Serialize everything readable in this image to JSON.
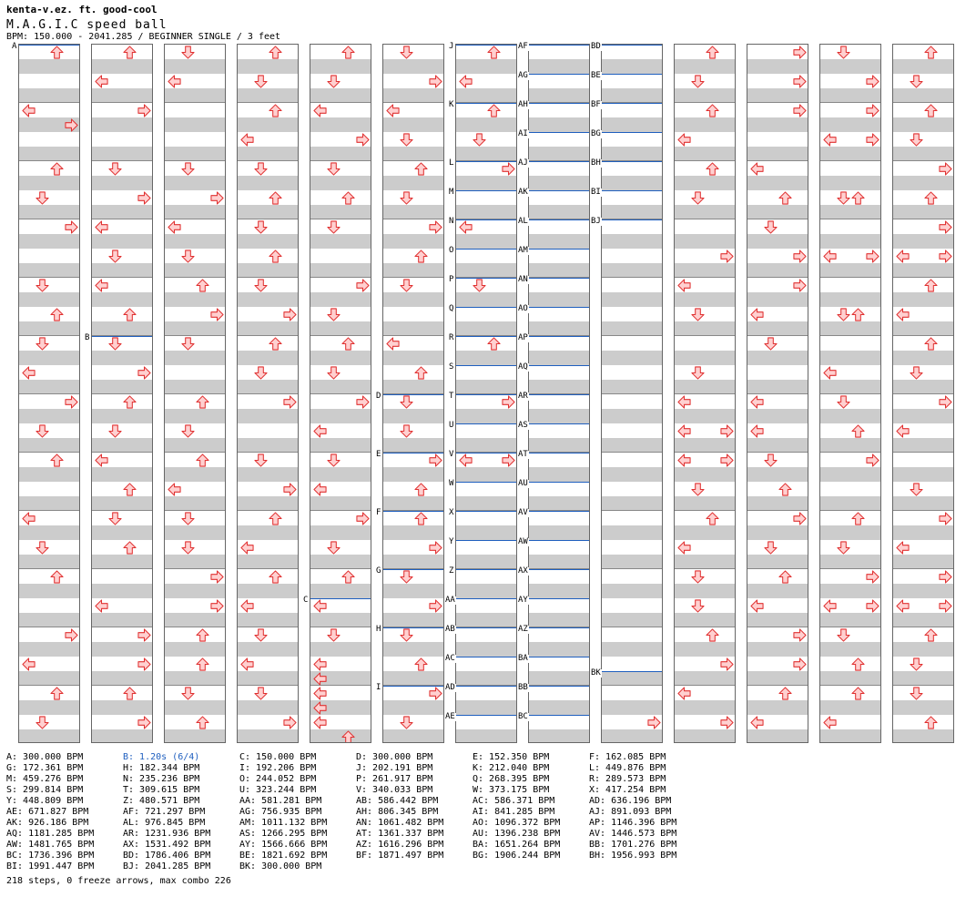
{
  "header": {
    "artist": "kenta-v.ez. ft. good-cool",
    "title": "M.A.G.I.C speed ball",
    "bpm_line": "BPM: 150.000 - 2041.285 / BEGINNER SINGLE / 3 feet"
  },
  "colors": {
    "arrow_fill": "#ffd0d0",
    "arrow_stroke": "#e03030",
    "bpm_line": "#1f5fbf",
    "highlight": "#1f5fbf"
  },
  "icon": "arrow-icon",
  "lanes": [
    "left",
    "down",
    "up",
    "right"
  ],
  "columns": [
    {
      "notes": [
        [
          "up",
          0
        ],
        [
          "left",
          4
        ],
        [
          "right",
          5
        ],
        [
          "up",
          8
        ],
        [
          "down",
          10
        ],
        [
          "right",
          12
        ],
        [
          "down",
          16
        ],
        [
          "up",
          18
        ],
        [
          "down",
          20
        ],
        [
          "left",
          22
        ],
        [
          "right",
          24
        ],
        [
          "down",
          26
        ],
        [
          "up",
          28
        ],
        [
          "left",
          32
        ],
        [
          "down",
          34
        ],
        [
          "up",
          36
        ],
        [
          "right",
          40
        ],
        [
          "left",
          42
        ],
        [
          "up",
          44
        ],
        [
          "down",
          46
        ]
      ],
      "segs": [
        [
          "A",
          0
        ]
      ]
    },
    {
      "notes": [
        [
          "up",
          0
        ],
        [
          "left",
          2
        ],
        [
          "right",
          4
        ],
        [
          "down",
          8
        ],
        [
          "right",
          10
        ],
        [
          "left",
          12
        ],
        [
          "down",
          14
        ],
        [
          "left",
          16
        ],
        [
          "up",
          18
        ],
        [
          "down",
          20
        ],
        [
          "right",
          22
        ],
        [
          "up",
          24
        ],
        [
          "down",
          26
        ],
        [
          "left",
          28
        ],
        [
          "up",
          30
        ],
        [
          "down",
          32
        ],
        [
          "up",
          34
        ],
        [
          "left",
          38
        ],
        [
          "right",
          40
        ],
        [
          "right",
          42
        ],
        [
          "up",
          44
        ],
        [
          "right",
          46
        ]
      ],
      "segs": [
        [
          "B",
          20
        ]
      ]
    },
    {
      "notes": [
        [
          "down",
          0
        ],
        [
          "left",
          2
        ],
        [
          "down",
          8
        ],
        [
          "right",
          10
        ],
        [
          "left",
          12
        ],
        [
          "down",
          14
        ],
        [
          "up",
          16
        ],
        [
          "right",
          18
        ],
        [
          "down",
          20
        ],
        [
          "up",
          24
        ],
        [
          "down",
          26
        ],
        [
          "up",
          28
        ],
        [
          "left",
          30
        ],
        [
          "down",
          32
        ],
        [
          "down",
          34
        ],
        [
          "right",
          36
        ],
        [
          "right",
          38
        ],
        [
          "up",
          40
        ],
        [
          "up",
          42
        ],
        [
          "down",
          44
        ],
        [
          "up",
          46
        ]
      ],
      "segs": []
    },
    {
      "notes": [
        [
          "up",
          0
        ],
        [
          "down",
          2
        ],
        [
          "up",
          4
        ],
        [
          "left",
          6
        ],
        [
          "down",
          8
        ],
        [
          "up",
          10
        ],
        [
          "down",
          12
        ],
        [
          "up",
          14
        ],
        [
          "down",
          16
        ],
        [
          "right",
          18
        ],
        [
          "up",
          20
        ],
        [
          "down",
          22
        ],
        [
          "right",
          24
        ],
        [
          "down",
          28
        ],
        [
          "right",
          30
        ],
        [
          "up",
          32
        ],
        [
          "left",
          34
        ],
        [
          "up",
          36
        ],
        [
          "left",
          38
        ],
        [
          "down",
          40
        ],
        [
          "left",
          42
        ],
        [
          "down",
          44
        ],
        [
          "right",
          46
        ]
      ],
      "segs": []
    },
    {
      "notes": [
        [
          "up",
          0
        ],
        [
          "down",
          2
        ],
        [
          "left",
          4
        ],
        [
          "right",
          6
        ],
        [
          "down",
          8
        ],
        [
          "up",
          10
        ],
        [
          "down",
          12
        ],
        [
          "right",
          16
        ],
        [
          "down",
          18
        ],
        [
          "up",
          20
        ],
        [
          "down",
          22
        ],
        [
          "right",
          24
        ],
        [
          "left",
          26
        ],
        [
          "down",
          28
        ],
        [
          "left",
          30
        ],
        [
          "right",
          32
        ],
        [
          "down",
          34
        ],
        [
          "up",
          36
        ],
        [
          "left",
          38
        ],
        [
          "down",
          40
        ],
        [
          "left",
          42
        ],
        [
          "left",
          43
        ],
        [
          "left",
          44
        ],
        [
          "left",
          45
        ],
        [
          "left",
          46
        ],
        [
          "up",
          47
        ]
      ],
      "segs": [
        [
          "C",
          38
        ]
      ]
    },
    {
      "notes": [
        [
          "down",
          0
        ],
        [
          "right",
          2
        ],
        [
          "left",
          4
        ],
        [
          "down",
          6
        ],
        [
          "up",
          8
        ],
        [
          "down",
          10
        ],
        [
          "right",
          12
        ],
        [
          "up",
          14
        ],
        [
          "down",
          16
        ],
        [
          "left",
          20
        ],
        [
          "up",
          22
        ],
        [
          "down",
          24
        ],
        [
          "down",
          26
        ],
        [
          "right",
          28
        ],
        [
          "up",
          30
        ],
        [
          "up",
          32
        ],
        [
          "right",
          34
        ],
        [
          "down",
          36
        ],
        [
          "right",
          38
        ],
        [
          "down",
          40
        ],
        [
          "up",
          42
        ],
        [
          "right",
          44
        ],
        [
          "down",
          46
        ]
      ],
      "segs": [
        [
          "D",
          24
        ],
        [
          "E",
          28
        ],
        [
          "F",
          32
        ],
        [
          "G",
          36
        ],
        [
          "H",
          40
        ],
        [
          "I",
          44
        ]
      ]
    },
    {
      "notes": [
        [
          "up",
          0
        ],
        [
          "left",
          2
        ],
        [
          "up",
          4
        ],
        [
          "down",
          6
        ],
        [
          "right",
          8
        ],
        [
          "left",
          12
        ],
        [
          "down",
          16
        ],
        [
          "up",
          20
        ],
        [
          "right",
          24
        ],
        [
          "left",
          28
        ],
        [
          "right",
          28
        ]
      ],
      "segs": [
        [
          "J",
          0
        ],
        [
          "K",
          4
        ],
        [
          "L",
          8
        ],
        [
          "M",
          10
        ],
        [
          "N",
          12
        ],
        [
          "O",
          14
        ],
        [
          "P",
          16
        ],
        [
          "Q",
          18
        ],
        [
          "R",
          20
        ],
        [
          "S",
          22
        ],
        [
          "T",
          24
        ],
        [
          "U",
          26
        ],
        [
          "V",
          28
        ],
        [
          "W",
          30
        ],
        [
          "X",
          32
        ],
        [
          "Y",
          34
        ],
        [
          "Z",
          36
        ],
        [
          "AA",
          38
        ],
        [
          "AB",
          40
        ],
        [
          "AC",
          42
        ],
        [
          "AD",
          44
        ],
        [
          "AE",
          46
        ]
      ]
    },
    {
      "notes": [],
      "segs": [
        [
          "AF",
          0
        ],
        [
          "AG",
          2
        ],
        [
          "AH",
          4
        ],
        [
          "AI",
          6
        ],
        [
          "AJ",
          8
        ],
        [
          "AK",
          10
        ],
        [
          "AL",
          12
        ],
        [
          "AM",
          14
        ],
        [
          "AN",
          16
        ],
        [
          "AO",
          18
        ],
        [
          "AP",
          20
        ],
        [
          "AQ",
          22
        ],
        [
          "AR",
          24
        ],
        [
          "AS",
          26
        ],
        [
          "AT",
          28
        ],
        [
          "AU",
          30
        ],
        [
          "AV",
          32
        ],
        [
          "AW",
          34
        ],
        [
          "AX",
          36
        ],
        [
          "AY",
          38
        ],
        [
          "AZ",
          40
        ],
        [
          "BA",
          42
        ],
        [
          "BB",
          44
        ],
        [
          "BC",
          46
        ]
      ]
    },
    {
      "notes": [
        [
          "right",
          46
        ]
      ],
      "segs": [
        [
          "BD",
          0
        ],
        [
          "BE",
          2
        ],
        [
          "BF",
          4
        ],
        [
          "BG",
          6
        ],
        [
          "BH",
          8
        ],
        [
          "BI",
          10
        ],
        [
          "BJ",
          12
        ],
        [
          "BK",
          43
        ]
      ]
    },
    {
      "notes": [
        [
          "up",
          0
        ],
        [
          "down",
          2
        ],
        [
          "up",
          4
        ],
        [
          "left",
          6
        ],
        [
          "up",
          8
        ],
        [
          "down",
          10
        ],
        [
          "right",
          14
        ],
        [
          "left",
          16
        ],
        [
          "down",
          18
        ],
        [
          "down",
          22
        ],
        [
          "left",
          24
        ],
        [
          "left",
          26
        ],
        [
          "right",
          26
        ],
        [
          "left",
          28
        ],
        [
          "right",
          28
        ],
        [
          "down",
          30
        ],
        [
          "up",
          32
        ],
        [
          "left",
          34
        ],
        [
          "down",
          36
        ],
        [
          "down",
          38
        ],
        [
          "up",
          40
        ],
        [
          "right",
          42
        ],
        [
          "left",
          44
        ],
        [
          "right",
          46
        ]
      ],
      "segs": []
    },
    {
      "notes": [
        [
          "right",
          0
        ],
        [
          "right",
          2
        ],
        [
          "right",
          4
        ],
        [
          "left",
          8
        ],
        [
          "up",
          10
        ],
        [
          "down",
          12
        ],
        [
          "right",
          14
        ],
        [
          "right",
          16
        ],
        [
          "left",
          18
        ],
        [
          "down",
          20
        ],
        [
          "left",
          24
        ],
        [
          "left",
          26
        ],
        [
          "down",
          28
        ],
        [
          "up",
          30
        ],
        [
          "right",
          32
        ],
        [
          "down",
          34
        ],
        [
          "up",
          36
        ],
        [
          "left",
          38
        ],
        [
          "right",
          40
        ],
        [
          "right",
          42
        ],
        [
          "up",
          44
        ],
        [
          "left",
          46
        ]
      ],
      "segs": []
    },
    {
      "notes": [
        [
          "down",
          0
        ],
        [
          "right",
          2
        ],
        [
          "right",
          4
        ],
        [
          "left",
          6
        ],
        [
          "right",
          6
        ],
        [
          "down",
          10
        ],
        [
          "up",
          10
        ],
        [
          "left",
          14
        ],
        [
          "right",
          14
        ],
        [
          "down",
          18
        ],
        [
          "up",
          18
        ],
        [
          "left",
          22
        ],
        [
          "down",
          24
        ],
        [
          "up",
          26
        ],
        [
          "right",
          28
        ],
        [
          "up",
          32
        ],
        [
          "down",
          34
        ],
        [
          "right",
          36
        ],
        [
          "left",
          38
        ],
        [
          "right",
          38
        ],
        [
          "down",
          40
        ],
        [
          "up",
          42
        ],
        [
          "up",
          44
        ],
        [
          "left",
          46
        ]
      ],
      "segs": []
    },
    {
      "notes": [
        [
          "up",
          0
        ],
        [
          "down",
          2
        ],
        [
          "up",
          4
        ],
        [
          "down",
          6
        ],
        [
          "right",
          8
        ],
        [
          "up",
          10
        ],
        [
          "right",
          12
        ],
        [
          "left",
          14
        ],
        [
          "right",
          14
        ],
        [
          "up",
          16
        ],
        [
          "left",
          18
        ],
        [
          "up",
          20
        ],
        [
          "down",
          22
        ],
        [
          "right",
          24
        ],
        [
          "left",
          26
        ],
        [
          "down",
          30
        ],
        [
          "right",
          32
        ],
        [
          "left",
          34
        ],
        [
          "right",
          36
        ],
        [
          "left",
          38
        ],
        [
          "right",
          38
        ],
        [
          "up",
          40
        ],
        [
          "down",
          42
        ],
        [
          "down",
          44
        ],
        [
          "up",
          46
        ]
      ],
      "segs": []
    }
  ],
  "legend": [
    [
      "A: 300.000 BPM",
      "B: 1.20s (6/4)",
      "C: 150.000 BPM",
      "D: 300.000 BPM",
      "E: 152.350 BPM",
      "F: 162.085 BPM"
    ],
    [
      "G: 172.361 BPM",
      "H: 182.344 BPM",
      "I: 192.206 BPM",
      "J: 202.191 BPM",
      "K: 212.040 BPM",
      "L: 449.876 BPM"
    ],
    [
      "M: 459.276 BPM",
      "N: 235.236 BPM",
      "O: 244.052 BPM",
      "P: 261.917 BPM",
      "Q: 268.395 BPM",
      "R: 289.573 BPM"
    ],
    [
      "S: 299.814 BPM",
      "T: 309.615 BPM",
      "U: 323.244 BPM",
      "V: 340.033 BPM",
      "W: 373.175 BPM",
      "X: 417.254 BPM"
    ],
    [
      "Y: 448.809 BPM",
      "Z: 480.571 BPM",
      "AA: 581.281 BPM",
      "AB: 586.442 BPM",
      "AC: 586.371 BPM",
      "AD: 636.196 BPM"
    ],
    [
      "AE: 671.827 BPM",
      "AF: 721.297 BPM",
      "AG: 756.935 BPM",
      "AH: 806.345 BPM",
      "AI: 841.285 BPM",
      "AJ: 891.093 BPM"
    ],
    [
      "AK: 926.186 BPM",
      "AL: 976.845 BPM",
      "AM: 1011.132 BPM",
      "AN: 1061.482 BPM",
      "AO: 1096.372 BPM",
      "AP: 1146.396 BPM"
    ],
    [
      "AQ: 1181.285 BPM",
      "AR: 1231.936 BPM",
      "AS: 1266.295 BPM",
      "AT: 1361.337 BPM",
      "AU: 1396.238 BPM",
      "AV: 1446.573 BPM"
    ],
    [
      "AW: 1481.765 BPM",
      "AX: 1531.492 BPM",
      "AY: 1566.666 BPM",
      "AZ: 1616.296 BPM",
      "BA: 1651.264 BPM",
      "BB: 1701.276 BPM"
    ],
    [
      "BC: 1736.396 BPM",
      "BD: 1786.406 BPM",
      "BE: 1821.692 BPM",
      "BF: 1871.497 BPM",
      "BG: 1906.244 BPM",
      "BH: 1956.993 BPM"
    ],
    [
      "BI: 1991.447 BPM",
      "BJ: 2041.285 BPM",
      "BK: 300.000 BPM"
    ]
  ],
  "legend_highlight": "B: 1.20s (6/4)",
  "stats": "218 steps, 0 freeze arrows, max combo 226"
}
